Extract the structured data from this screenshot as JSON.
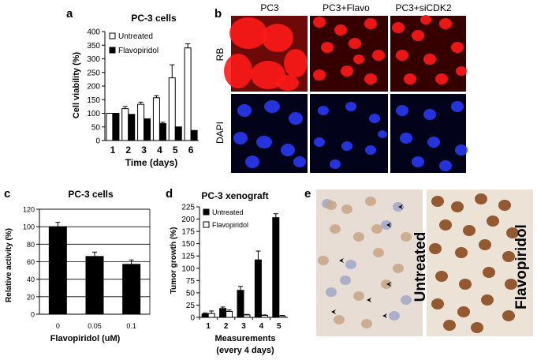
{
  "panel_labels": {
    "a": "a",
    "b": "b",
    "c": "c",
    "d": "d",
    "e": "e"
  },
  "chart_data": [
    {
      "panel": "a",
      "type": "bar",
      "title": "PC-3 cells",
      "xlabel": "Time (days)",
      "ylabel": "Cell viability (%)",
      "ylim": [
        0,
        400
      ],
      "yticks": [
        0,
        50,
        100,
        150,
        200,
        250,
        300,
        350,
        400
      ],
      "categories": [
        "1",
        "2",
        "3",
        "4",
        "5",
        "6"
      ],
      "legend_position": "top-left",
      "grid": false,
      "series": [
        {
          "name": "Untreated",
          "color": "#ffffff",
          "values": [
            100,
            117,
            133,
            157,
            230,
            340
          ],
          "errors": [
            0,
            8,
            8,
            8,
            48,
            15
          ]
        },
        {
          "name": "Flavopiridol",
          "color": "#000000",
          "values": [
            100,
            96,
            80,
            62,
            50,
            37
          ],
          "errors": [
            0,
            0,
            0,
            5,
            0,
            0
          ]
        }
      ]
    },
    {
      "panel": "c",
      "type": "bar",
      "title": "PC-3 cells",
      "xlabel": "Flavopiridol (uM)",
      "ylabel": "Relative activity (%)",
      "ylim": [
        0,
        120
      ],
      "yticks": [
        0,
        20,
        40,
        60,
        80,
        100,
        120
      ],
      "categories": [
        "0",
        "0.05",
        "0.1"
      ],
      "grid": true,
      "series": [
        {
          "color": "#000000",
          "values": [
            100,
            66,
            57
          ],
          "errors": [
            5,
            5,
            5
          ]
        }
      ]
    },
    {
      "panel": "d",
      "type": "bar",
      "title": "PC-3 xenograft",
      "xlabel": "Measurements",
      "xlabel2": "(every 4 days)",
      "ylabel": "Tumor growth (%)",
      "ylim": [
        0,
        225
      ],
      "yticks": [
        0,
        25,
        50,
        75,
        100,
        125,
        150,
        175,
        200,
        225
      ],
      "categories": [
        "1",
        "2",
        "3",
        "4",
        "5"
      ],
      "legend_position": "top-left",
      "grid": false,
      "series": [
        {
          "name": "Untreated",
          "color": "#000000",
          "values": [
            7,
            18,
            55,
            117,
            203
          ],
          "errors": [
            2,
            3,
            8,
            18,
            8
          ]
        },
        {
          "name": "Flavopiridol",
          "color": "#ffffff",
          "values": [
            8,
            12,
            5,
            4,
            3
          ],
          "errors": [
            5,
            3,
            1,
            1,
            1
          ]
        }
      ]
    }
  ],
  "micrographs": {
    "b_columns": [
      "PC3",
      "PC3+Flavo",
      "PC3+siCDK2"
    ],
    "b_rows": [
      "RB",
      "DAPI"
    ],
    "rb_color": "#ff1a1a",
    "dapi_color": "#2a3cff",
    "e_labels": [
      "Untreated",
      "Flavopiridol"
    ],
    "ihc_nucleus_color": "#8a4a1e"
  }
}
